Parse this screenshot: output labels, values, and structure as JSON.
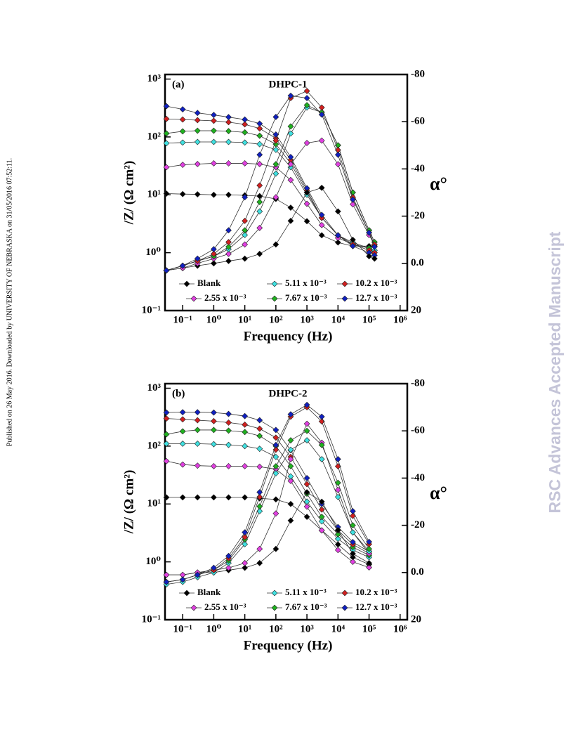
{
  "side_note": "Published on 26 May 2016. Downloaded by UNIVERSITY OF NEBRASKA on 31/05/2016 07:52:11.",
  "watermark": "RSC Advances Accepted Manuscript",
  "chart_data": [
    {
      "type": "line",
      "panel": "(a)",
      "title": "DHPC-1",
      "xlabel": "Frequency (Hz)",
      "ylabel": "/Z/ (Ω cm²)",
      "y2label": "α°",
      "xscale": "log",
      "yscale": "log",
      "xlim": [
        0.027,
        1700000
      ],
      "ylim": [
        0.1,
        1200
      ],
      "y2lim": [
        20,
        -80
      ],
      "xticks": [
        {
          "value": 0.1,
          "label": "10⁻¹"
        },
        {
          "value": 1,
          "label": "10⁰"
        },
        {
          "value": 10,
          "label": "10¹"
        },
        {
          "value": 100,
          "label": "10²"
        },
        {
          "value": 1000,
          "label": "10³"
        },
        {
          "value": 10000,
          "label": "10⁴"
        },
        {
          "value": 100000,
          "label": "10⁵"
        },
        {
          "value": 1000000,
          "label": "10⁶"
        }
      ],
      "yticks": [
        {
          "value": 0.1,
          "label": "10⁻¹"
        },
        {
          "value": 1,
          "label": "10⁰"
        },
        {
          "value": 10,
          "label": "10¹"
        },
        {
          "value": 100,
          "label": "10²"
        },
        {
          "value": 1000,
          "label": "10³"
        }
      ],
      "y2ticks": [
        -80,
        -60,
        -40,
        -20,
        {
          "value": 0,
          "label": "0.0"
        },
        20
      ],
      "x": [
        0.03,
        0.1,
        0.3,
        1,
        3,
        10,
        30,
        100,
        300,
        1000,
        3000,
        10000,
        30000,
        100000,
        150000
      ],
      "series": [
        {
          "name": "Blank",
          "color": "#000000",
          "values": [
            10.5,
            10.3,
            10.2,
            10,
            10,
            9.8,
            9.5,
            8.5,
            6,
            3.5,
            2,
            1.5,
            1.3,
            1.3,
            1.3
          ]
        },
        {
          "name": "2.55 x 10⁻³",
          "color": "#e040e0",
          "values": [
            30,
            33,
            34,
            35,
            35,
            35,
            34,
            30,
            18,
            7,
            3,
            1.8,
            1.4,
            1.2,
            1.1
          ]
        },
        {
          "name": "5.11 x 10⁻³",
          "color": "#40e0e0",
          "values": [
            78,
            80,
            82,
            82,
            82,
            80,
            75,
            60,
            30,
            10,
            4,
            2,
            1.5,
            1.2,
            1.1
          ]
        },
        {
          "name": "7.67 x 10⁻³",
          "color": "#20b020",
          "values": [
            115,
            125,
            128,
            128,
            126,
            120,
            105,
            75,
            35,
            11,
            4,
            2,
            1.4,
            1.2,
            1
          ]
        },
        {
          "name": "10.2 x 10⁻³",
          "color": "#d02020",
          "values": [
            205,
            200,
            195,
            190,
            180,
            165,
            140,
            95,
            40,
            12,
            4,
            2,
            1.4,
            1.1,
            1
          ]
        },
        {
          "name": "12.7 x 10⁻³",
          "color": "#1020c0",
          "values": [
            340,
            300,
            260,
            240,
            220,
            200,
            170,
            110,
            45,
            13,
            4.5,
            2,
            1.3,
            1,
            0.9
          ]
        },
        {
          "name": "Blank",
          "color": "#000000",
          "axis": "y2",
          "values": [
            3,
            2,
            1,
            0,
            -1,
            -2,
            -4,
            -8,
            -18,
            -30,
            -32,
            -22,
            -10,
            -3,
            -2
          ]
        },
        {
          "name": "2.55 x 10⁻³",
          "color": "#e040e0",
          "axis": "y2",
          "values": [
            3,
            2,
            0,
            -2,
            -4,
            -8,
            -15,
            -28,
            -42,
            -51,
            -52,
            -42,
            -25,
            -12,
            -8
          ]
        },
        {
          "name": "5.11 x 10⁻³",
          "color": "#40e0e0",
          "axis": "y2",
          "values": [
            3,
            1,
            -1,
            -3,
            -6,
            -12,
            -22,
            -38,
            -55,
            -66,
            -64,
            -50,
            -30,
            -14,
            -9
          ]
        },
        {
          "name": "7.67 x 10⁻³",
          "color": "#20b020",
          "axis": "y2",
          "values": [
            3,
            1,
            -1,
            -3,
            -7,
            -14,
            -26,
            -42,
            -58,
            -67,
            -64,
            -50,
            -30,
            -14,
            -9
          ]
        },
        {
          "name": "10.2 x 10⁻³",
          "color": "#d02020",
          "axis": "y2",
          "values": [
            3,
            1,
            -1,
            -4,
            -9,
            -18,
            -33,
            -52,
            -70,
            -73,
            -66,
            -48,
            -28,
            -13,
            -8
          ]
        },
        {
          "name": "12.7 x 10⁻³",
          "color": "#1020c0",
          "axis": "y2",
          "values": [
            3,
            1,
            -2,
            -6,
            -14,
            -28,
            -46,
            -62,
            -71,
            -70,
            -63,
            -46,
            -27,
            -13,
            -7
          ]
        }
      ]
    },
    {
      "type": "line",
      "panel": "(b)",
      "title": "DHPC-2",
      "xlabel": "Frequency (Hz)",
      "ylabel": "/Z/ (Ω cm²)",
      "y2label": "α°",
      "xscale": "log",
      "yscale": "log",
      "xlim": [
        0.027,
        1700000
      ],
      "ylim": [
        0.1,
        1200
      ],
      "y2lim": [
        20,
        -80
      ],
      "xticks": [
        {
          "value": 0.1,
          "label": "10⁻¹"
        },
        {
          "value": 1,
          "label": "10⁰"
        },
        {
          "value": 10,
          "label": "10¹"
        },
        {
          "value": 100,
          "label": "10²"
        },
        {
          "value": 1000,
          "label": "10³"
        },
        {
          "value": 10000,
          "label": "10⁴"
        },
        {
          "value": 100000,
          "label": "10⁵"
        },
        {
          "value": 1000000,
          "label": "10⁶"
        }
      ],
      "yticks": [
        {
          "value": 0.1,
          "label": "10⁻¹"
        },
        {
          "value": 1,
          "label": "10⁰"
        },
        {
          "value": 10,
          "label": "10¹"
        },
        {
          "value": 100,
          "label": "10²"
        },
        {
          "value": 1000,
          "label": "10³"
        }
      ],
      "y2ticks": [
        -80,
        -60,
        -40,
        -20,
        {
          "value": 0,
          "label": "0.0"
        },
        20
      ],
      "x": [
        0.03,
        0.1,
        0.3,
        1,
        3,
        10,
        30,
        100,
        300,
        1000,
        3000,
        10000,
        30000,
        100000
      ],
      "series": [
        {
          "name": "Blank",
          "color": "#000000",
          "values": [
            13,
            13,
            13,
            13,
            13,
            13,
            12.5,
            12,
            10,
            6,
            3.5,
            2,
            1.2,
            0.9
          ]
        },
        {
          "name": "2.55 x 10⁻³",
          "color": "#e040e0",
          "values": [
            55,
            48,
            46,
            45,
            45,
            45,
            44,
            40,
            25,
            9,
            3.5,
            1.6,
            1,
            0.8
          ]
        },
        {
          "name": "5.11 x 10⁻³",
          "color": "#40e0e0",
          "values": [
            110,
            110,
            110,
            108,
            105,
            100,
            90,
            65,
            30,
            11,
            5,
            2.5,
            1.6,
            1.2
          ]
        },
        {
          "name": "7.67 x 10⁻³",
          "color": "#20b020",
          "values": [
            160,
            180,
            190,
            190,
            185,
            175,
            150,
            100,
            45,
            15,
            6,
            3,
            1.8,
            1.3
          ]
        },
        {
          "name": "10.2 x 10⁻³",
          "color": "#d02020",
          "values": [
            300,
            290,
            280,
            270,
            255,
            235,
            200,
            140,
            65,
            22,
            8,
            3.5,
            2,
            1.4
          ]
        },
        {
          "name": "12.7 x 10⁻³",
          "color": "#1020c0",
          "values": [
            380,
            385,
            385,
            380,
            360,
            330,
            280,
            190,
            85,
            28,
            10,
            4,
            2.2,
            1.5
          ]
        },
        {
          "name": "Blank",
          "color": "#000000",
          "axis": "y2",
          "values": [
            1,
            1,
            0,
            0,
            -1,
            -2,
            -4,
            -10,
            -22,
            -34,
            -30,
            -18,
            -8,
            -4
          ]
        },
        {
          "name": "2.55 x 10⁻³",
          "color": "#e040e0",
          "axis": "y2",
          "values": [
            1,
            1,
            0,
            -1,
            -2,
            -4,
            -10,
            -25,
            -48,
            -63,
            -55,
            -35,
            -17,
            -8
          ]
        },
        {
          "name": "5.11 x 10⁻³",
          "color": "#40e0e0",
          "axis": "y2",
          "values": [
            5,
            4,
            2,
            0,
            -4,
            -12,
            -26,
            -42,
            -52,
            -56,
            -48,
            -32,
            -17,
            -9
          ]
        },
        {
          "name": "7.67 x 10⁻³",
          "color": "#20b020",
          "axis": "y2",
          "values": [
            4,
            3,
            1,
            -1,
            -5,
            -14,
            -28,
            -45,
            -56,
            -60,
            -54,
            -38,
            -20,
            -10
          ]
        },
        {
          "name": "10.2 x 10⁻³",
          "color": "#d02020",
          "axis": "y2",
          "values": [
            4,
            3,
            1,
            -1,
            -6,
            -15,
            -32,
            -52,
            -66,
            -70,
            -64,
            -45,
            -24,
            -12
          ]
        },
        {
          "name": "12.7 x 10⁻³",
          "color": "#1020c0",
          "axis": "y2",
          "values": [
            4,
            3,
            1,
            -2,
            -7,
            -17,
            -34,
            -54,
            -67,
            -71,
            -66,
            -48,
            -26,
            -13
          ]
        }
      ]
    }
  ]
}
